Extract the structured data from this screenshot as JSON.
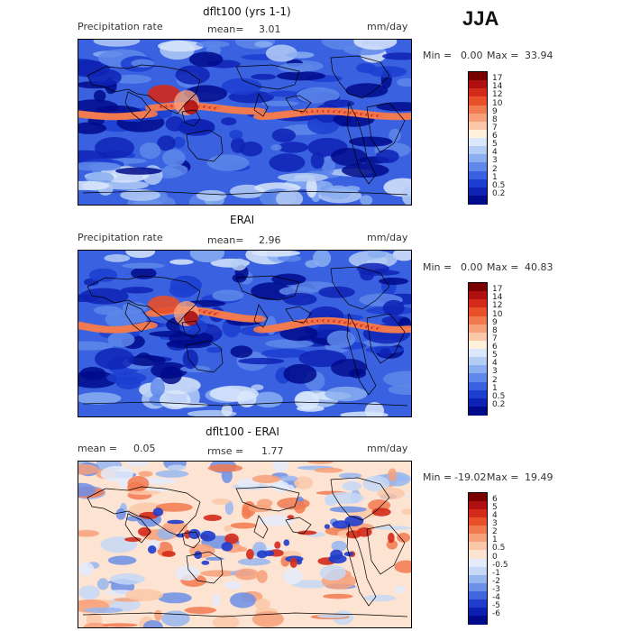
{
  "season": "JJA",
  "panels": [
    {
      "title": "dflt100 (yrs 1-1)",
      "variable": "Precipitation rate",
      "mean_label": "mean=",
      "mean_value": "3.01",
      "units": "mm/day",
      "min_label": "Min =",
      "min_value": "0.00",
      "max_label": "Max =",
      "max_value": "33.94",
      "colorbar_levels": [
        "17",
        "14",
        "12",
        "10",
        "9",
        "8",
        "7",
        "6",
        "5",
        "4",
        "3",
        "2",
        "1",
        "0.5",
        "0.2"
      ],
      "colorbar_colors": [
        "#7a0000",
        "#b01010",
        "#d42a1a",
        "#e8502a",
        "#f27a50",
        "#f7a07a",
        "#fac8a8",
        "#fff1dc",
        "#dbe8fb",
        "#b4cdf5",
        "#8aaef0",
        "#5f88ea",
        "#3a62e0",
        "#1c3ed0",
        "#0e22b4",
        "#000a8a"
      ],
      "map_style": "model"
    },
    {
      "title": "ERAI",
      "variable": "Precipitation rate",
      "mean_label": "mean=",
      "mean_value": "2.96",
      "units": "mm/day",
      "min_label": "Min =",
      "min_value": "0.00",
      "max_label": "Max =",
      "max_value": "40.83",
      "colorbar_levels": [
        "17",
        "14",
        "12",
        "10",
        "9",
        "8",
        "7",
        "6",
        "5",
        "4",
        "3",
        "2",
        "1",
        "0.5",
        "0.2"
      ],
      "colorbar_colors": [
        "#7a0000",
        "#b01010",
        "#d42a1a",
        "#e8502a",
        "#f27a50",
        "#f7a07a",
        "#fac8a8",
        "#fff1dc",
        "#dbe8fb",
        "#b4cdf5",
        "#8aaef0",
        "#5f88ea",
        "#3a62e0",
        "#1c3ed0",
        "#0e22b4",
        "#000a8a"
      ],
      "map_style": "obs"
    },
    {
      "title": "dflt100 - ERAI",
      "variable": "",
      "mean_label": "mean =",
      "mean_value": "0.05",
      "rmse_label": "rmse =",
      "rmse_value": "1.77",
      "units": "mm/day",
      "min_label": "Min =",
      "min_value": "-19.02",
      "max_label": "Max =",
      "max_value": "19.49",
      "colorbar_levels": [
        "6",
        "5",
        "4",
        "3",
        "2",
        "1",
        "0.5",
        "0",
        "-0.5",
        "-1",
        "-2",
        "-3",
        "-4",
        "-5",
        "-6"
      ],
      "colorbar_colors": [
        "#7a0000",
        "#b01010",
        "#d42a1a",
        "#e8502a",
        "#f27a50",
        "#f7a07a",
        "#fac8a8",
        "#fde3d2",
        "#e4ecfb",
        "#c6d8f6",
        "#98b6f0",
        "#6c8fe8",
        "#4266de",
        "#1f3ccc",
        "#0c1fb0",
        "#000a8a"
      ],
      "map_style": "diff"
    }
  ]
}
